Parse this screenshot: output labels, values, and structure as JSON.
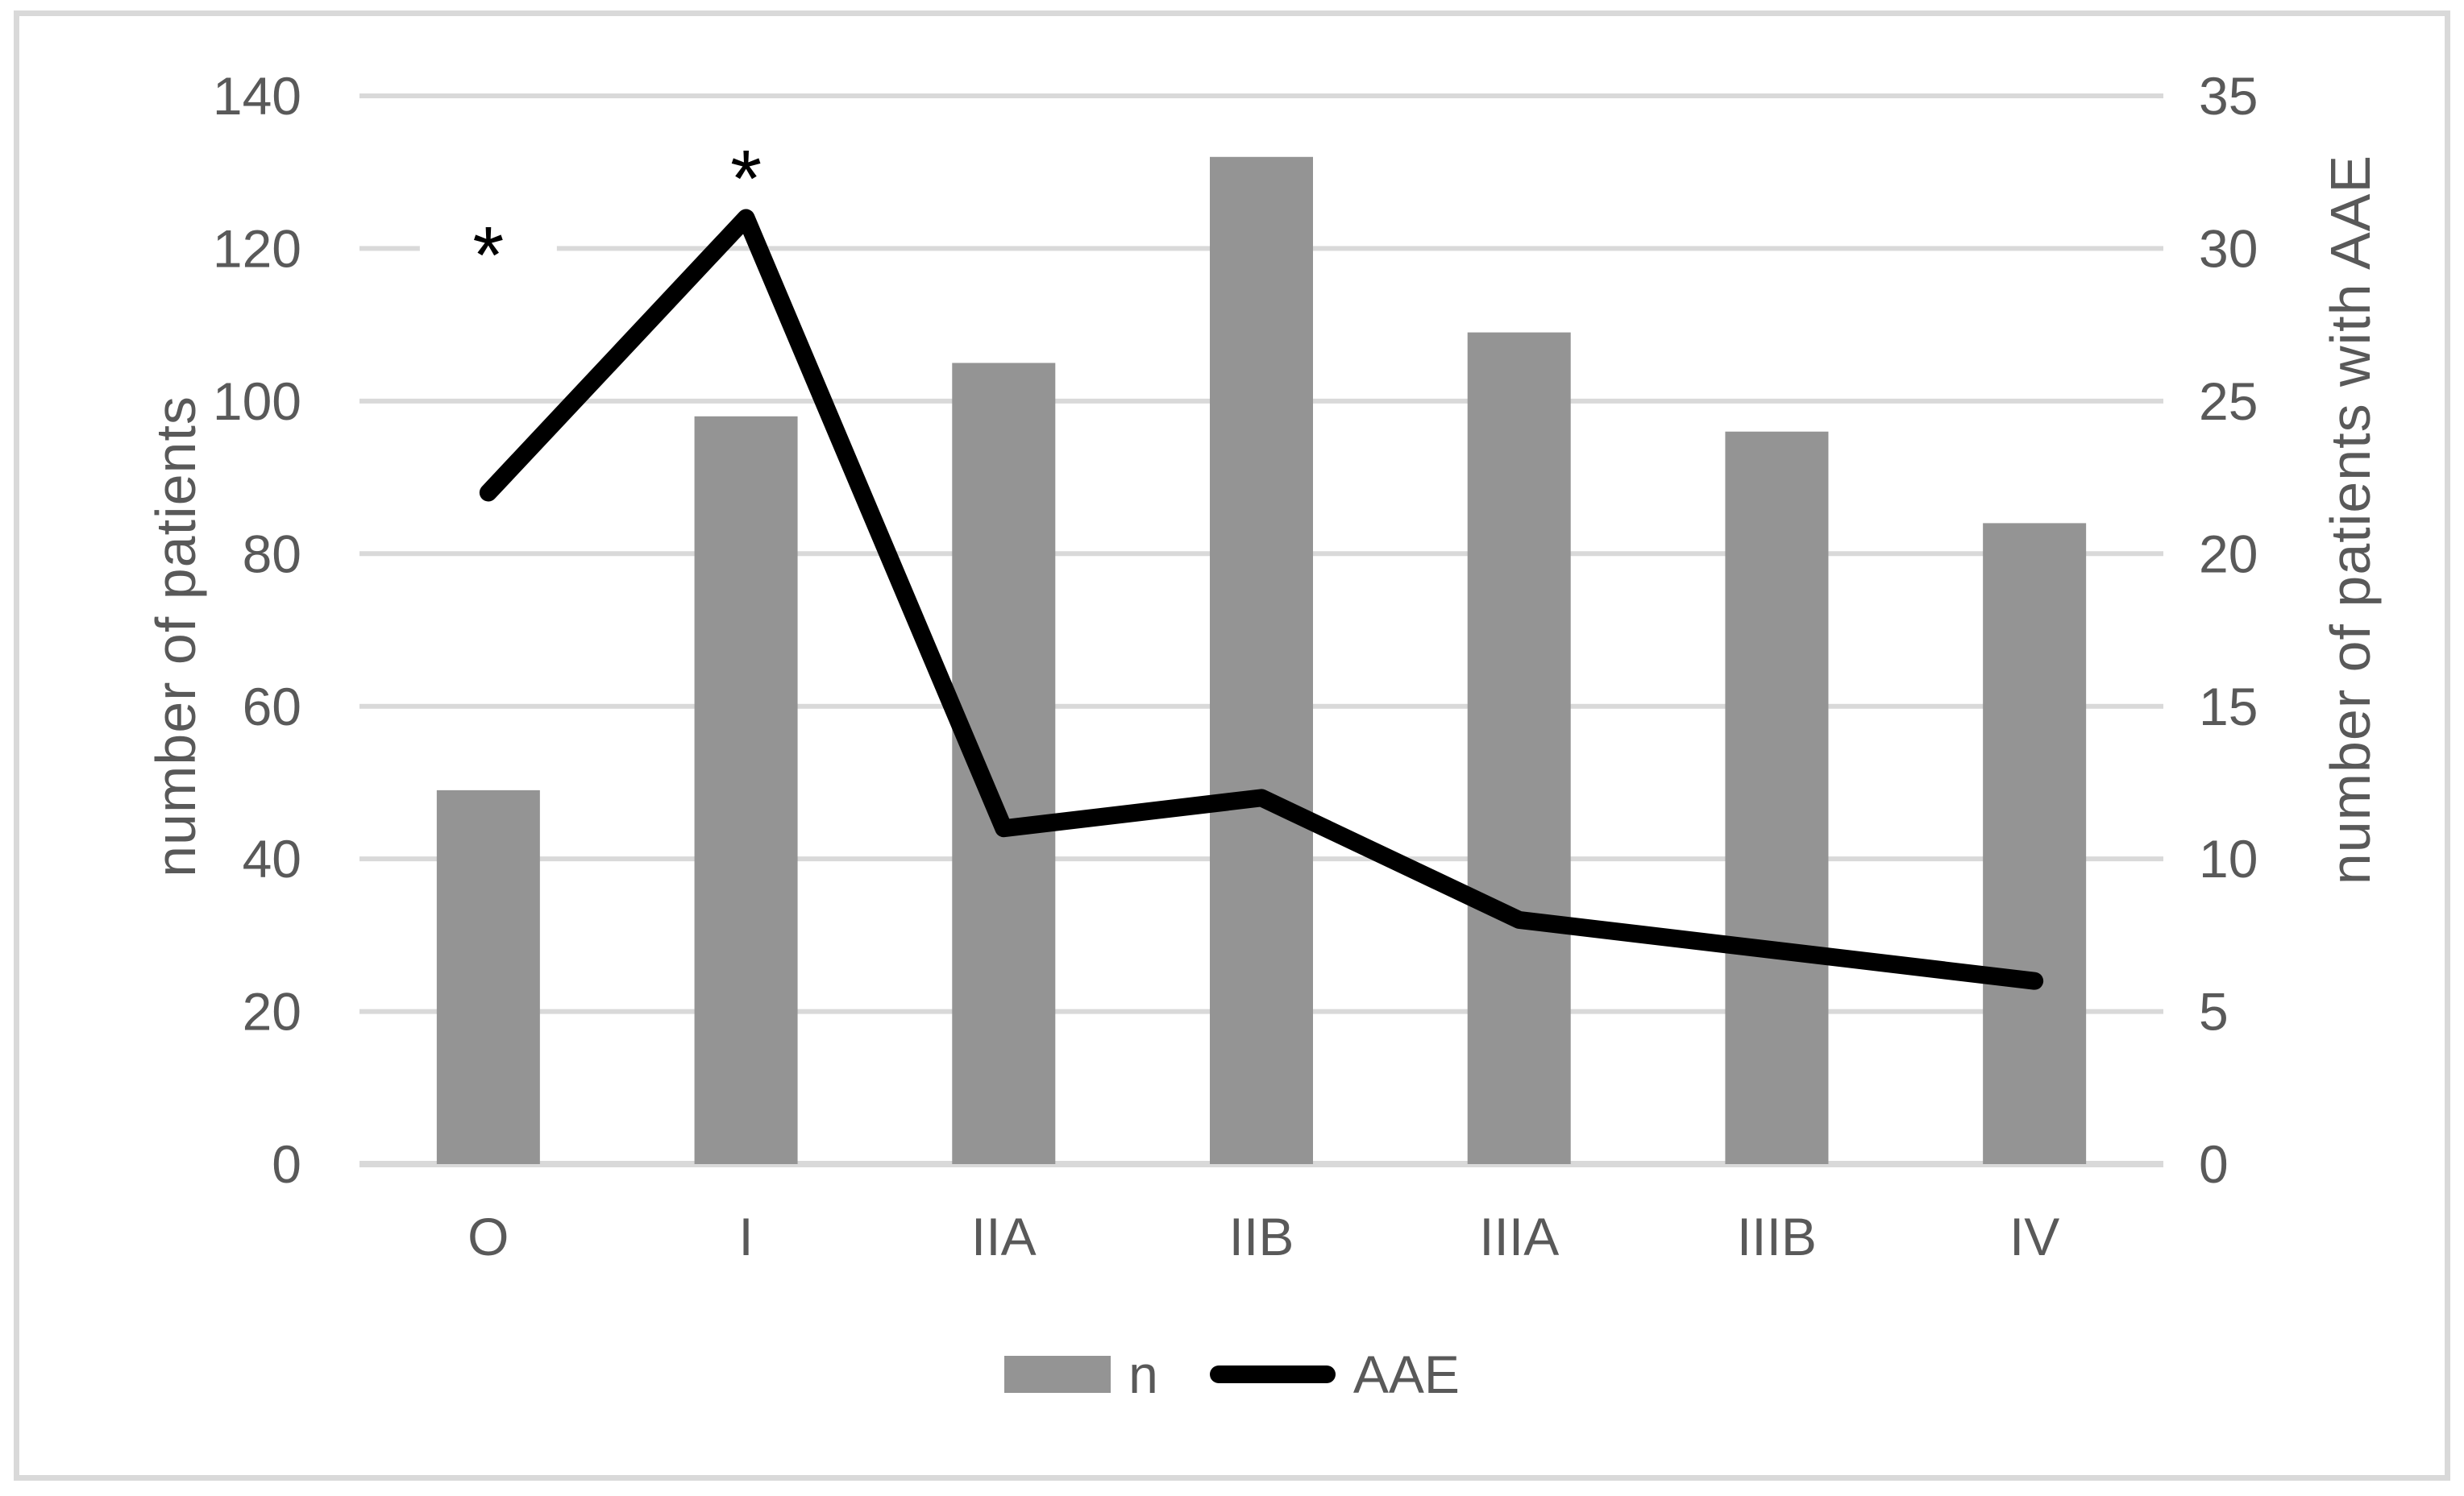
{
  "figure": {
    "background_color": "#ffffff",
    "frame_color": "#d9d9d9"
  },
  "chart_data": {
    "type": "bar",
    "subtype": "dual-axis bar with overlaid line",
    "categories": [
      "O",
      "I",
      "IIA",
      "IIB",
      "IIIA",
      "IIIB",
      "IV"
    ],
    "series": [
      {
        "name": "n",
        "type": "bar",
        "axis": "left",
        "color": "#949494",
        "values": [
          49,
          98,
          105,
          132,
          109,
          96,
          84
        ]
      },
      {
        "name": "AAE",
        "type": "line",
        "axis": "right",
        "color": "#000000",
        "values": [
          22,
          31,
          11,
          12,
          8,
          7,
          6
        ]
      }
    ],
    "left_axis": {
      "title": "number of patients",
      "min": 0,
      "max": 140,
      "step": 20,
      "tick_labels": [
        "0",
        "20",
        "40",
        "60",
        "80",
        "100",
        "120",
        "140"
      ]
    },
    "right_axis": {
      "title": "number of patients with AAE",
      "min": 0,
      "max": 35,
      "step": 5,
      "tick_labels": [
        "0",
        "5",
        "10",
        "15",
        "20",
        "25",
        "30",
        "35"
      ]
    },
    "x_axis": {
      "tick_labels": [
        "O",
        "I",
        "IIA",
        "IIB",
        "IIIA",
        "IIIB",
        "IV"
      ]
    },
    "annotations": [
      {
        "text": "*",
        "category": "O",
        "value_left": 121
      },
      {
        "text": "*",
        "category": "I",
        "value_left": 131
      }
    ],
    "legend": {
      "position": "bottom",
      "entries": [
        {
          "label": "n",
          "marker": "square",
          "color": "#949494"
        },
        {
          "label": "AAE",
          "marker": "line",
          "color": "#000000"
        }
      ]
    },
    "grid": "horizontal",
    "gridline_color": "#d9d9d9",
    "text_color": "#595959"
  }
}
